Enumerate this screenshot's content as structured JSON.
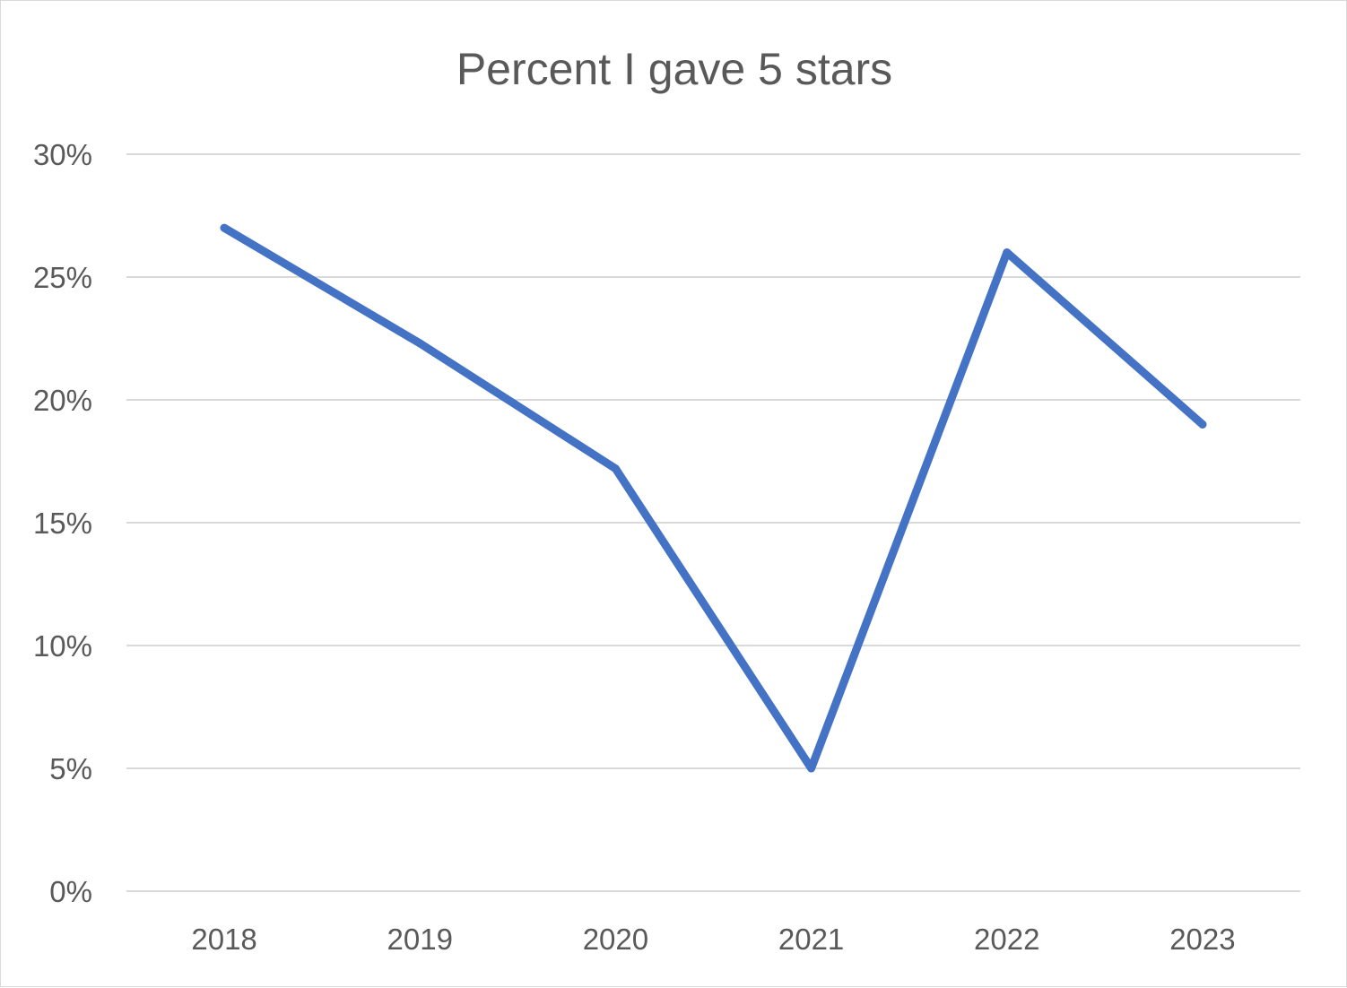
{
  "chart_data": {
    "type": "line",
    "title": "Percent I gave 5 stars",
    "xlabel": "",
    "ylabel": "",
    "categories": [
      "2018",
      "2019",
      "2020",
      "2021",
      "2022",
      "2023"
    ],
    "series": [
      {
        "values": [
          27.0,
          22.3,
          17.2,
          5.0,
          26.0,
          19.0
        ],
        "color": "#4472c4"
      }
    ],
    "ylim": [
      0,
      30
    ],
    "y_ticks": [
      0,
      5,
      10,
      15,
      20,
      25,
      30
    ],
    "y_tick_labels": [
      "0%",
      "5%",
      "10%",
      "15%",
      "20%",
      "25%",
      "30%"
    ],
    "grid": true,
    "gridline_color": "#d9d9d9",
    "legend": "none"
  }
}
